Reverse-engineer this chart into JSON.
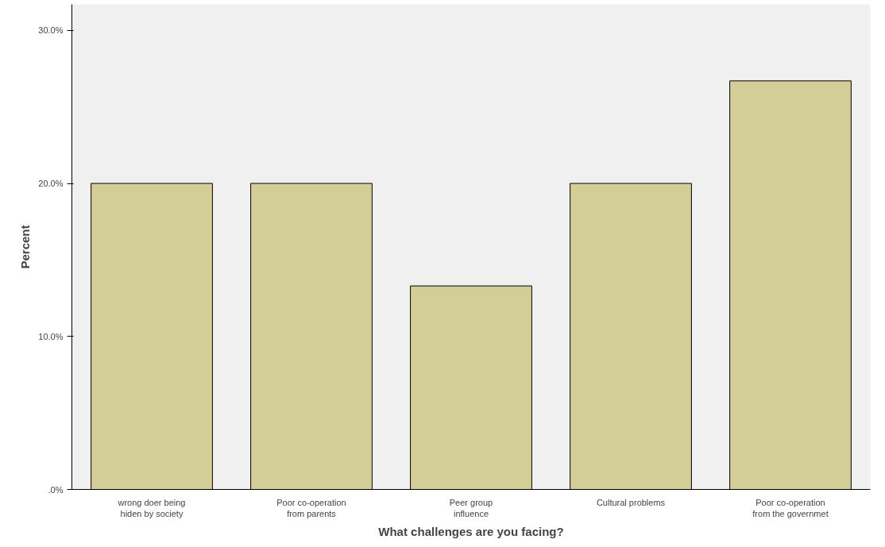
{
  "chart_data": {
    "type": "bar",
    "xlabel": "What challenges are you facing?",
    "ylabel": "Percent",
    "categories": [
      "wrong doer being\nhiden by society",
      "Poor co-operation\nfrom parents",
      "Peer group\ninfluence",
      "Cultural problems",
      "Poor co-operation\nfrom the governmet"
    ],
    "values": [
      20,
      20,
      13.3,
      20,
      26.7
    ],
    "color": "#d3ce97",
    "ylim": [
      0,
      31.7
    ],
    "yticks": [
      {
        "value": 0,
        "label": ".0%"
      },
      {
        "value": 10,
        "label": "10.0%"
      },
      {
        "value": 20,
        "label": "20.0%"
      },
      {
        "value": 30,
        "label": "30.0%"
      }
    ],
    "grid": false
  }
}
